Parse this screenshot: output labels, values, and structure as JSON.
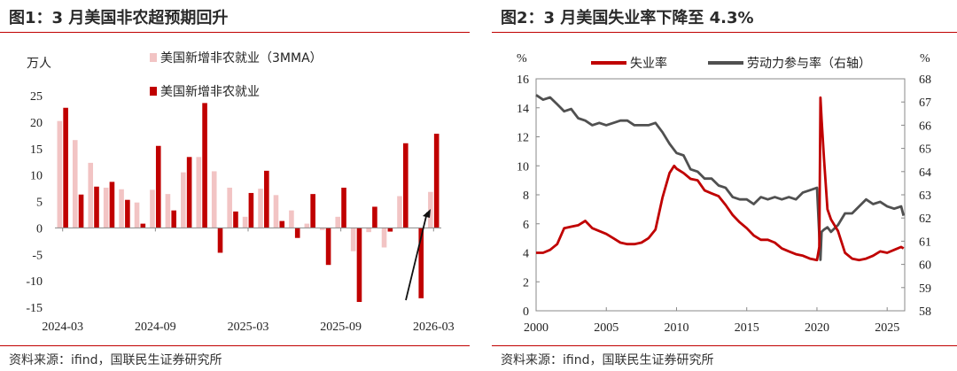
{
  "chart_data": [
    {
      "type": "bar",
      "title": "图1：3 月美国非农超预期回升",
      "ylabel": "万人",
      "ylim": [
        -15,
        25
      ],
      "yticks": [
        25,
        20,
        15,
        10,
        5,
        0,
        -5,
        -10,
        -15
      ],
      "categories": [
        "2024-03",
        "2024-04",
        "2024-05",
        "2024-06",
        "2024-07",
        "2024-08",
        "2024-09",
        "2024-10",
        "2024-11",
        "2024-12",
        "2025-01",
        "2025-02",
        "2025-03",
        "2025-04",
        "2025-05",
        "2025-06",
        "2025-07",
        "2025-08",
        "2025-09",
        "2025-10",
        "2025-11",
        "2025-12",
        "2026-01",
        "2026-02",
        "2026-03"
      ],
      "xtick_labels": [
        "2024-03",
        "2024-09",
        "2025-03",
        "2025-09",
        "2026-03"
      ],
      "series": [
        {
          "name": "美国新增非农就业（3MMA）",
          "color": "#f2c4c4",
          "values": [
            20.2,
            16.6,
            12.3,
            7.6,
            7.3,
            4.8,
            7.2,
            6.4,
            10.5,
            13.4,
            10.7,
            7.6,
            2.1,
            7.4,
            6.2,
            3.3,
            0.8,
            -0.4,
            2.1,
            -4.4,
            -0.8,
            -3.7,
            6.0,
            0.0,
            6.8
          ]
        },
        {
          "name": "美国新增非农就业",
          "color": "#c00000",
          "values": [
            22.7,
            6.3,
            7.8,
            8.7,
            5.3,
            0.8,
            15.5,
            3.3,
            13.4,
            23.6,
            -4.7,
            3.1,
            6.6,
            10.8,
            1.3,
            -1.9,
            6.4,
            -7.0,
            7.6,
            -14.0,
            4.0,
            -0.7,
            16.0,
            -13.3,
            17.8
          ]
        }
      ],
      "annotation": "arrow pointing up at latest value"
    },
    {
      "type": "line",
      "title": "图2：3 月美国失业率下降至 4.3%",
      "ylabel_left": "%",
      "ylabel_right": "%",
      "ylim_left": [
        0,
        16
      ],
      "ylim_right": [
        58,
        68
      ],
      "yticks_left": [
        16,
        14,
        12,
        10,
        8,
        6,
        4,
        2,
        0
      ],
      "yticks_right": [
        68,
        67,
        66,
        65,
        64,
        63,
        62,
        61,
        60,
        59,
        58
      ],
      "xlim": [
        2000,
        2026.25
      ],
      "xticks": [
        2000,
        2005,
        2010,
        2015,
        2020,
        2025
      ],
      "series": [
        {
          "name": "失业率",
          "axis": "left",
          "color": "#c00000",
          "x": [
            2000,
            2000.5,
            2001,
            2001.5,
            2002,
            2002.5,
            2003,
            2003.5,
            2004,
            2004.5,
            2005,
            2005.5,
            2006,
            2006.5,
            2007,
            2007.5,
            2008,
            2008.5,
            2009,
            2009.5,
            2009.83,
            2010,
            2010.5,
            2011,
            2011.5,
            2012,
            2012.5,
            2013,
            2013.5,
            2014,
            2014.5,
            2015,
            2015.5,
            2016,
            2016.5,
            2017,
            2017.5,
            2018,
            2018.5,
            2019,
            2019.5,
            2020,
            2020.17,
            2020.25,
            2020.33,
            2020.5,
            2020.75,
            2021,
            2021.5,
            2022,
            2022.5,
            2023,
            2023.5,
            2024,
            2024.5,
            2025,
            2025.5,
            2026,
            2026.17
          ],
          "values": [
            4.0,
            4.0,
            4.2,
            4.6,
            5.7,
            5.8,
            5.9,
            6.2,
            5.7,
            5.5,
            5.3,
            5.0,
            4.7,
            4.6,
            4.6,
            4.7,
            5.0,
            5.6,
            7.8,
            9.5,
            10.0,
            9.8,
            9.5,
            9.1,
            9.0,
            8.3,
            8.1,
            7.9,
            7.3,
            6.6,
            6.1,
            5.7,
            5.2,
            4.9,
            4.9,
            4.7,
            4.3,
            4.1,
            3.9,
            3.8,
            3.6,
            3.5,
            4.4,
            14.7,
            13.2,
            10.5,
            7.0,
            6.3,
            5.5,
            4.0,
            3.6,
            3.5,
            3.6,
            3.8,
            4.1,
            4.0,
            4.2,
            4.4,
            4.3
          ]
        },
        {
          "name": "劳动力参与率（右轴）",
          "axis": "right",
          "color": "#505050",
          "x": [
            2000,
            2000.5,
            2001,
            2001.5,
            2002,
            2002.5,
            2003,
            2003.5,
            2004,
            2004.5,
            2005,
            2005.5,
            2006,
            2006.5,
            2007,
            2007.5,
            2008,
            2008.5,
            2009,
            2009.5,
            2010,
            2010.5,
            2011,
            2011.5,
            2012,
            2012.5,
            2013,
            2013.5,
            2014,
            2014.5,
            2015,
            2015.5,
            2016,
            2016.5,
            2017,
            2017.5,
            2018,
            2018.5,
            2019,
            2019.5,
            2020,
            2020.25,
            2020.33,
            2020.5,
            2020.75,
            2021,
            2021.5,
            2022,
            2022.5,
            2023,
            2023.5,
            2024,
            2024.5,
            2025,
            2025.5,
            2026,
            2026.17
          ],
          "values": [
            67.3,
            67.1,
            67.2,
            66.9,
            66.6,
            66.7,
            66.3,
            66.2,
            66.0,
            66.1,
            66.0,
            66.1,
            66.2,
            66.2,
            66.0,
            66.0,
            66.0,
            66.1,
            65.7,
            65.2,
            64.8,
            64.7,
            64.1,
            64.0,
            63.7,
            63.7,
            63.4,
            63.3,
            62.9,
            62.8,
            62.8,
            62.6,
            62.9,
            62.8,
            62.9,
            62.8,
            62.9,
            62.8,
            63.1,
            63.2,
            63.3,
            60.2,
            61.4,
            61.5,
            61.6,
            61.4,
            61.7,
            62.2,
            62.2,
            62.5,
            62.8,
            62.6,
            62.7,
            62.5,
            62.4,
            62.5,
            62.1
          ]
        }
      ]
    }
  ],
  "panel1": {
    "title": "图1：3 月美国非农超预期回升",
    "unit": "万人",
    "legend_3mma": "美国新增非农就业（3MMA）",
    "legend_monthly": "美国新增非农就业",
    "source": "资料来源：ifind，国联民生证券研究所"
  },
  "panel2": {
    "title": "图2：3 月美国失业率下降至 4.3%",
    "unit_left": "%",
    "unit_right": "%",
    "legend_unemp": "失业率",
    "legend_lfpr": "劳动力参与率（右轴）",
    "source": "资料来源：ifind，国联民生证券研究所"
  },
  "colors": {
    "accent_red": "#c00000",
    "light_red": "#f2c4c4",
    "gray_line": "#505050",
    "axis": "#888888"
  }
}
